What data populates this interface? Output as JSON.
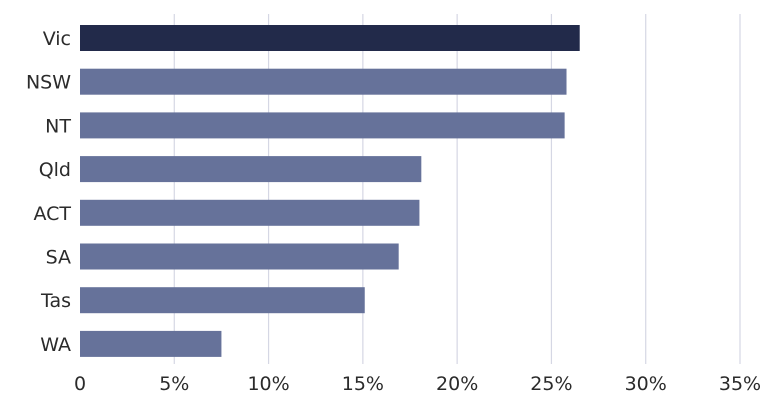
{
  "chart_data": {
    "type": "bar",
    "orientation": "horizontal",
    "title": "",
    "xlabel": "",
    "ylabel": "",
    "categories": [
      "Vic",
      "NSW",
      "NT",
      "Qld",
      "ACT",
      "SA",
      "Tas",
      "WA"
    ],
    "values": [
      26.5,
      25.8,
      25.7,
      18.1,
      18.0,
      16.9,
      15.1,
      7.5
    ],
    "xlim": [
      0,
      35
    ],
    "x_ticks": [
      0,
      5,
      10,
      15,
      20,
      25,
      30,
      35
    ],
    "x_tick_labels": [
      "0",
      "5%",
      "10%",
      "15%",
      "20%",
      "25%",
      "30%",
      "35%"
    ],
    "grid": "vertical",
    "colors": {
      "highlight": "#222a4a",
      "bar": "#66729a",
      "grid": "#d5d7e4"
    },
    "highlight_category": "Vic"
  }
}
